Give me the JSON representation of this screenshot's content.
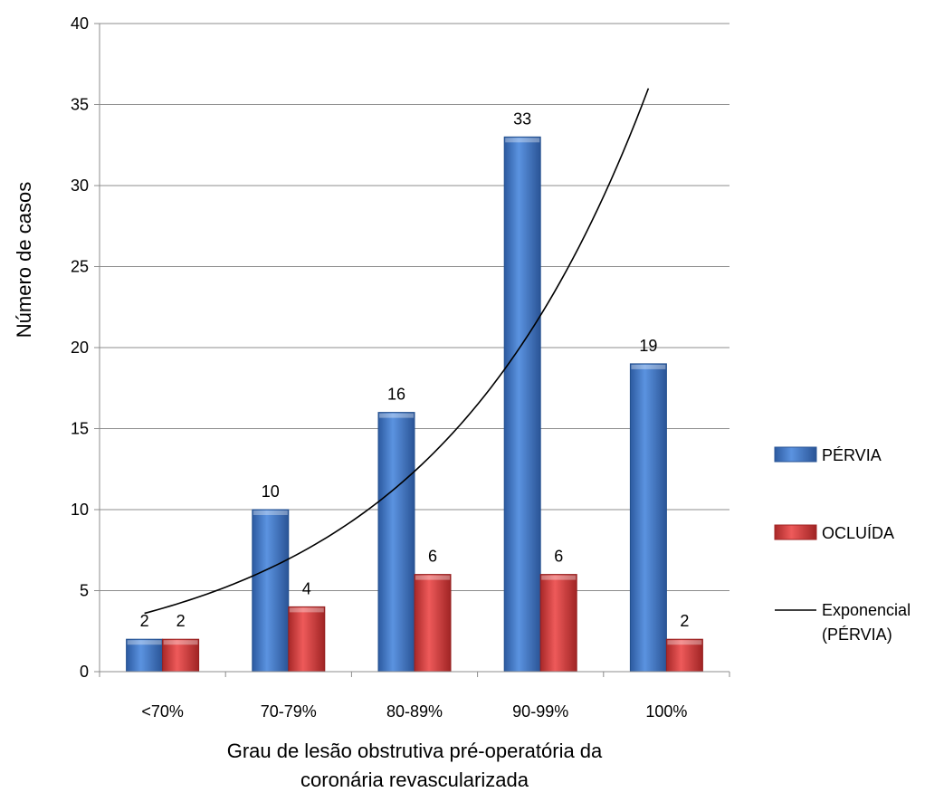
{
  "chart_data": {
    "type": "bar",
    "categories": [
      "<70%",
      "70-79%",
      "80-89%",
      "90-99%",
      "100%"
    ],
    "series": [
      {
        "name": "PÉRVIA",
        "values": [
          2,
          10,
          16,
          33,
          19
        ],
        "color": "#3F77C8"
      },
      {
        "name": "OCLUÍDA",
        "values": [
          2,
          4,
          6,
          6,
          2
        ],
        "color": "#D43A3A"
      }
    ],
    "trendline": {
      "name_line1": "Exponencial",
      "name_line2": "(PÉRVIA)",
      "type": "exponential",
      "series": "PÉRVIA",
      "start_value": 3.6,
      "end_value": 36,
      "color": "#000000"
    },
    "xlabel_line1": "Grau de lesão obstrutiva pré-operatória da",
    "xlabel_line2": "coronária revascularizada",
    "ylabel": "Número de casos",
    "ylim": [
      0,
      40
    ],
    "yticks": [
      "0",
      "5",
      "10",
      "15",
      "20",
      "25",
      "30",
      "35",
      "40"
    ],
    "grid": true,
    "legend_position": "right"
  }
}
